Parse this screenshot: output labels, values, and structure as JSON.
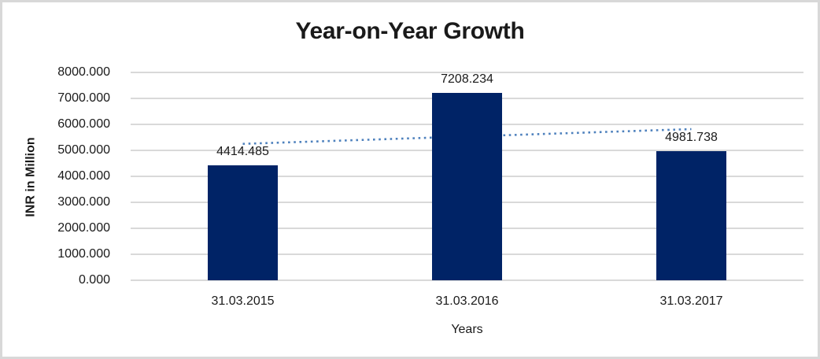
{
  "chart_data": {
    "type": "bar",
    "title": "Year-on-Year Growth",
    "xlabel": "Years",
    "ylabel": "INR in Million",
    "categories": [
      "31.03.2015",
      "31.03.2016",
      "31.03.2017"
    ],
    "values": [
      4414.485,
      7208.234,
      4981.738
    ],
    "data_labels": [
      "4414.485",
      "7208.234",
      "4981.738"
    ],
    "ylim": [
      0,
      8000
    ],
    "yticks": [
      "0.000",
      "1000.000",
      "2000.000",
      "3000.000",
      "4000.000",
      "5000.000",
      "6000.000",
      "7000.000",
      "8000.000"
    ],
    "grid": "horizontal",
    "legend": "none",
    "trendline": {
      "type": "linear",
      "style": "dotted",
      "endpoint_values": [
        5251.1,
        5818.5
      ]
    },
    "colors": {
      "bar": "#002366",
      "trendline": "#4E81BD",
      "gridline": "#D9D9D9",
      "text": "#1A1A1A",
      "chart_border": "#D8D8D8",
      "background": "#FFFFFF"
    }
  }
}
